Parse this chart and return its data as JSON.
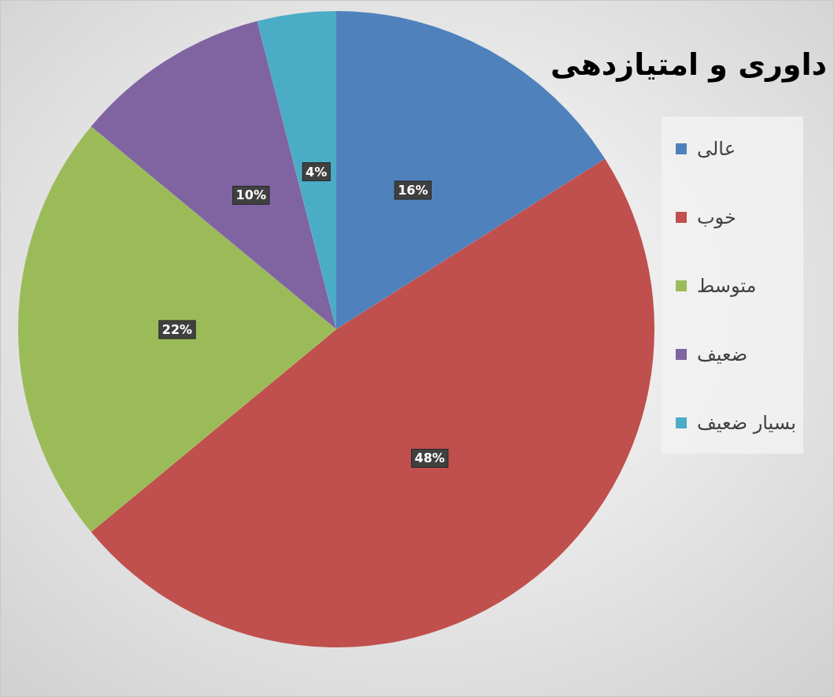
{
  "chart_data": {
    "type": "pie",
    "title": "داوری و امتیازدهی",
    "categories": [
      "عالی",
      "خوب",
      "متوسط",
      "ضعیف",
      "بسیار ضعیف"
    ],
    "values": [
      16,
      48,
      22,
      10,
      4
    ],
    "colors": [
      "#4f81bd",
      "#c0504d",
      "#9bbb59",
      "#8064a2",
      "#4bacc6"
    ],
    "value_labels": [
      "16%",
      "48%",
      "22%",
      "10%",
      "4%"
    ],
    "legend": "right"
  }
}
